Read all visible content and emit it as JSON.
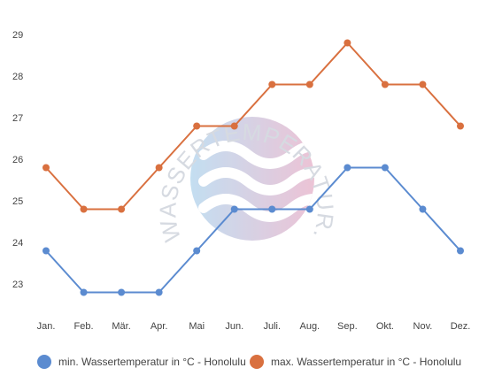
{
  "watermark": {
    "text": "WASSERTEMPERATUR.ORG",
    "colors": [
      "#b9d9ef",
      "#e9b9cf"
    ]
  },
  "chart_data": {
    "type": "line",
    "categories": [
      "Jan.",
      "Feb.",
      "Mär.",
      "Apr.",
      "Mai",
      "Jun.",
      "Juli.",
      "Aug.",
      "Sep.",
      "Okt.",
      "Nov.",
      "Dez."
    ],
    "series": [
      {
        "name": "min. Wassertemperatur in °C - Honolulu",
        "color": "#5b8bd0",
        "values": [
          23.8,
          22.8,
          22.8,
          22.8,
          23.8,
          24.8,
          24.8,
          24.8,
          25.8,
          25.8,
          24.8,
          23.8
        ]
      },
      {
        "name": "max. Wassertemperatur in °C - Honolulu",
        "color": "#d9703f",
        "values": [
          25.8,
          24.8,
          24.8,
          25.8,
          26.8,
          26.8,
          27.8,
          27.8,
          28.8,
          27.8,
          27.8,
          26.8
        ]
      }
    ],
    "yticks": [
      23,
      24,
      25,
      26,
      27,
      28,
      29
    ],
    "ylim": [
      22.3,
      29.3
    ],
    "title": "",
    "xlabel": "",
    "ylabel": "",
    "grid": false,
    "legend_position": "bottom"
  }
}
